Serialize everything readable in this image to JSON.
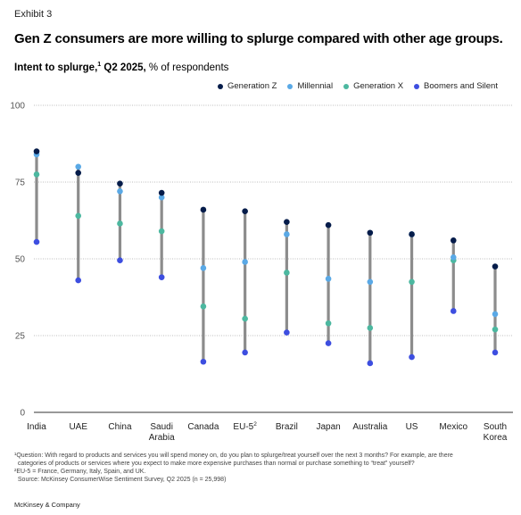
{
  "exhibit": "Exhibit 3",
  "title": "Gen Z consumers are more willing to splurge compared with other age groups.",
  "subtitle_bold": "Intent to splurge,",
  "subtitle_sup": "1",
  "subtitle_bold2": " Q2 2025,",
  "subtitle_rest": " % of respondents",
  "colors": {
    "Generation Z": "#051c4a",
    "Millennial": "#5aa9e6",
    "Generation X": "#4cb8a0",
    "Boomers and Silent": "#3d4ee0",
    "range_line": "#8c8c8c",
    "grid": "#bdbdbd"
  },
  "legend": [
    {
      "label": "Generation Z",
      "icon": "circle-dot"
    },
    {
      "label": "Millennial",
      "icon": "circle-dot"
    },
    {
      "label": "Generation X",
      "icon": "circle-dot"
    },
    {
      "label": "Boomers and Silent",
      "icon": "circle-dot"
    }
  ],
  "chart_data": {
    "type": "scatter",
    "title": "Gen Z consumers are more willing to splurge compared with other age groups.",
    "ylabel": "% of respondents",
    "ylim": [
      0,
      100
    ],
    "yticks": [
      0,
      25,
      50,
      75,
      100
    ],
    "grid": true,
    "legend_position": "top-right",
    "categories": [
      "India",
      "UAE",
      "China",
      "Saudi Arabia",
      "Canada",
      "EU-5",
      "Brazil",
      "Japan",
      "Australia",
      "US",
      "Mexico",
      "South Korea"
    ],
    "category_labels": [
      [
        "India"
      ],
      [
        "UAE"
      ],
      [
        "China"
      ],
      [
        "Saudi",
        "Arabia"
      ],
      [
        "Canada"
      ],
      [
        "EU-5",
        "2"
      ],
      [
        "Brazil"
      ],
      [
        "Japan"
      ],
      [
        "Australia"
      ],
      [
        "US"
      ],
      [
        "Mexico"
      ],
      [
        "South",
        "Korea"
      ]
    ],
    "series": [
      {
        "name": "Generation Z",
        "values": [
          85,
          78,
          74.5,
          71.5,
          66,
          65.5,
          62,
          61,
          58.5,
          58,
          56,
          47.5
        ]
      },
      {
        "name": "Millennial",
        "values": [
          84,
          80,
          72,
          70,
          47,
          49,
          58,
          43.5,
          42.5,
          58,
          50.5,
          32
        ]
      },
      {
        "name": "Generation X",
        "values": [
          77.5,
          64,
          61.5,
          59,
          34.5,
          30.5,
          45.5,
          29,
          27.5,
          42.5,
          49.5,
          27
        ]
      },
      {
        "name": "Boomers and Silent",
        "values": [
          55.5,
          43,
          49.5,
          44,
          16.5,
          19.5,
          26,
          22.5,
          16,
          18,
          33,
          19.5
        ]
      }
    ]
  },
  "footnotes": [
    "¹Question: With regard to products and services you will spend money on, do you plan to splurge/treat yourself over the next 3 months? For example, are there",
    "  categories of products or services where you expect to make more expensive purchases than normal or purchase something to “treat” yourself?",
    "²EU-5 = France, Germany, Italy, Spain, and UK.",
    "  Source: McKinsey ConsumerWise Sentiment Survey, Q2 2025 (n = 25,998)"
  ],
  "brand": "McKinsey & Company"
}
